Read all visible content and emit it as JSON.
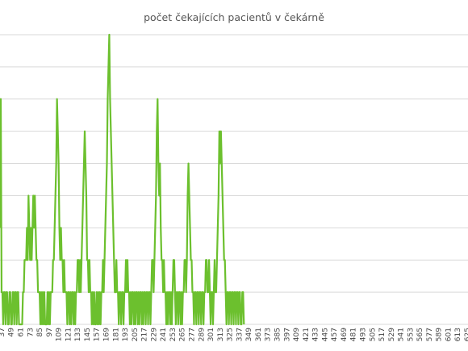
{
  "chart_data": {
    "type": "line",
    "title": "počet čekajících pacientů v čekárně",
    "xlabel": "",
    "ylabel": "",
    "grid": true,
    "legend": "none",
    "x_ticks": [
      "37",
      "49",
      "61",
      "73",
      "85",
      "97",
      "109",
      "121",
      "133",
      "145",
      "157",
      "169",
      "181",
      "193",
      "205",
      "217",
      "229",
      "241",
      "253",
      "265",
      "277",
      "289",
      "301",
      "313",
      "325",
      "337",
      "349",
      "361",
      "373",
      "385",
      "397",
      "409",
      "421",
      "433",
      "445",
      "457",
      "469",
      "481",
      "493",
      "505",
      "517",
      "529",
      "541",
      "553",
      "565",
      "577",
      "589",
      "601",
      "613",
      "625"
    ],
    "xlim": [
      35,
      626
    ],
    "ylim": [
      0,
      9
    ],
    "series": [
      {
        "color": "#6cc02e",
        "points": [
          [
            35,
            3
          ],
          [
            36,
            7
          ],
          [
            37,
            1
          ],
          [
            38,
            1
          ],
          [
            39,
            0
          ],
          [
            40,
            1
          ],
          [
            41,
            1
          ],
          [
            42,
            0
          ],
          [
            43,
            1
          ],
          [
            44,
            1
          ],
          [
            45,
            0
          ],
          [
            46,
            0
          ],
          [
            47,
            1
          ],
          [
            48,
            1
          ],
          [
            49,
            0
          ],
          [
            50,
            0
          ],
          [
            51,
            1
          ],
          [
            52,
            1
          ],
          [
            53,
            0
          ],
          [
            54,
            1
          ],
          [
            55,
            1
          ],
          [
            56,
            0
          ],
          [
            57,
            1
          ],
          [
            58,
            1
          ],
          [
            59,
            0
          ],
          [
            60,
            0
          ],
          [
            61,
            0
          ],
          [
            62,
            0
          ],
          [
            63,
            0
          ],
          [
            64,
            1
          ],
          [
            65,
            1
          ],
          [
            66,
            2
          ],
          [
            67,
            2
          ],
          [
            68,
            2
          ],
          [
            69,
            3
          ],
          [
            70,
            2
          ],
          [
            71,
            4
          ],
          [
            72,
            3
          ],
          [
            73,
            2
          ],
          [
            74,
            3
          ],
          [
            75,
            2
          ],
          [
            76,
            3
          ],
          [
            77,
            4
          ],
          [
            78,
            3
          ],
          [
            79,
            4
          ],
          [
            80,
            3
          ],
          [
            81,
            2
          ],
          [
            82,
            2
          ],
          [
            83,
            1
          ],
          [
            84,
            1
          ],
          [
            85,
            1
          ],
          [
            86,
            0
          ],
          [
            87,
            1
          ],
          [
            88,
            0
          ],
          [
            89,
            1
          ],
          [
            90,
            0
          ],
          [
            91,
            1
          ],
          [
            92,
            0
          ],
          [
            93,
            0
          ],
          [
            94,
            0
          ],
          [
            95,
            1
          ],
          [
            96,
            0
          ],
          [
            97,
            1
          ],
          [
            98,
            0
          ],
          [
            99,
            1
          ],
          [
            100,
            1
          ],
          [
            101,
            1
          ],
          [
            102,
            2
          ],
          [
            103,
            2
          ],
          [
            104,
            3
          ],
          [
            105,
            4
          ],
          [
            106,
            5
          ],
          [
            107,
            7
          ],
          [
            108,
            6
          ],
          [
            109,
            5
          ],
          [
            110,
            3
          ],
          [
            111,
            2
          ],
          [
            112,
            3
          ],
          [
            113,
            2
          ],
          [
            114,
            2
          ],
          [
            115,
            1
          ],
          [
            116,
            2
          ],
          [
            117,
            1
          ],
          [
            118,
            1
          ],
          [
            119,
            1
          ],
          [
            120,
            0
          ],
          [
            121,
            1
          ],
          [
            122,
            1
          ],
          [
            123,
            0
          ],
          [
            124,
            1
          ],
          [
            125,
            0
          ],
          [
            126,
            1
          ],
          [
            127,
            1
          ],
          [
            128,
            0
          ],
          [
            129,
            1
          ],
          [
            130,
            0
          ],
          [
            131,
            1
          ],
          [
            132,
            1
          ],
          [
            133,
            2
          ],
          [
            134,
            2
          ],
          [
            135,
            1
          ],
          [
            136,
            2
          ],
          [
            137,
            1
          ],
          [
            138,
            2
          ],
          [
            139,
            3
          ],
          [
            140,
            4
          ],
          [
            141,
            5
          ],
          [
            142,
            6
          ],
          [
            143,
            5
          ],
          [
            144,
            4
          ],
          [
            145,
            2
          ],
          [
            146,
            2
          ],
          [
            147,
            1
          ],
          [
            148,
            2
          ],
          [
            149,
            1
          ],
          [
            150,
            1
          ],
          [
            151,
            0
          ],
          [
            152,
            1
          ],
          [
            153,
            0
          ],
          [
            154,
            1
          ],
          [
            155,
            0
          ],
          [
            156,
            0
          ],
          [
            157,
            1
          ],
          [
            158,
            0
          ],
          [
            159,
            1
          ],
          [
            160,
            0
          ],
          [
            161,
            1
          ],
          [
            162,
            0
          ],
          [
            163,
            1
          ],
          [
            164,
            1
          ],
          [
            165,
            2
          ],
          [
            166,
            1
          ],
          [
            167,
            2
          ],
          [
            168,
            3
          ],
          [
            169,
            4
          ],
          [
            170,
            5
          ],
          [
            171,
            7
          ],
          [
            172,
            8
          ],
          [
            173,
            9
          ],
          [
            174,
            7
          ],
          [
            175,
            6
          ],
          [
            176,
            5
          ],
          [
            177,
            4
          ],
          [
            178,
            3
          ],
          [
            179,
            2
          ],
          [
            180,
            1
          ],
          [
            181,
            1
          ],
          [
            182,
            2
          ],
          [
            183,
            1
          ],
          [
            184,
            1
          ],
          [
            185,
            0
          ],
          [
            186,
            1
          ],
          [
            187,
            1
          ],
          [
            188,
            0
          ],
          [
            189,
            1
          ],
          [
            190,
            1
          ],
          [
            191,
            0
          ],
          [
            192,
            1
          ],
          [
            193,
            1
          ],
          [
            194,
            2
          ],
          [
            195,
            1
          ],
          [
            196,
            2
          ],
          [
            197,
            1
          ],
          [
            198,
            1
          ],
          [
            199,
            0
          ],
          [
            200,
            1
          ],
          [
            201,
            0
          ],
          [
            202,
            1
          ],
          [
            203,
            1
          ],
          [
            204,
            0
          ],
          [
            205,
            1
          ],
          [
            206,
            0
          ],
          [
            207,
            1
          ],
          [
            208,
            1
          ],
          [
            209,
            0
          ],
          [
            210,
            1
          ],
          [
            211,
            0
          ],
          [
            212,
            1
          ],
          [
            213,
            1
          ],
          [
            214,
            0
          ],
          [
            215,
            1
          ],
          [
            216,
            0
          ],
          [
            217,
            1
          ],
          [
            218,
            1
          ],
          [
            219,
            0
          ],
          [
            220,
            1
          ],
          [
            221,
            1
          ],
          [
            222,
            0
          ],
          [
            223,
            1
          ],
          [
            224,
            1
          ],
          [
            225,
            0
          ],
          [
            226,
            1
          ],
          [
            227,
            2
          ],
          [
            228,
            2
          ],
          [
            229,
            1
          ],
          [
            230,
            2
          ],
          [
            231,
            3
          ],
          [
            232,
            4
          ],
          [
            233,
            6
          ],
          [
            234,
            7
          ],
          [
            235,
            5
          ],
          [
            236,
            4
          ],
          [
            237,
            5
          ],
          [
            238,
            3
          ],
          [
            239,
            2
          ],
          [
            240,
            2
          ],
          [
            241,
            1
          ],
          [
            242,
            2
          ],
          [
            243,
            1
          ],
          [
            244,
            1
          ],
          [
            245,
            0
          ],
          [
            246,
            1
          ],
          [
            247,
            0
          ],
          [
            248,
            1
          ],
          [
            249,
            1
          ],
          [
            250,
            0
          ],
          [
            251,
            1
          ],
          [
            252,
            0
          ],
          [
            253,
            1
          ],
          [
            254,
            2
          ],
          [
            255,
            2
          ],
          [
            256,
            1
          ],
          [
            257,
            0
          ],
          [
            258,
            1
          ],
          [
            259,
            1
          ],
          [
            260,
            0
          ],
          [
            261,
            1
          ],
          [
            262,
            1
          ],
          [
            263,
            0
          ],
          [
            264,
            1
          ],
          [
            265,
            0
          ],
          [
            266,
            1
          ],
          [
            267,
            1
          ],
          [
            268,
            2
          ],
          [
            269,
            2
          ],
          [
            270,
            1
          ],
          [
            271,
            2
          ],
          [
            272,
            4
          ],
          [
            273,
            5
          ],
          [
            274,
            4
          ],
          [
            275,
            3
          ],
          [
            276,
            2
          ],
          [
            277,
            2
          ],
          [
            278,
            1
          ],
          [
            279,
            1
          ],
          [
            280,
            0
          ],
          [
            281,
            1
          ],
          [
            282,
            1
          ],
          [
            283,
            0
          ],
          [
            284,
            1
          ],
          [
            285,
            1
          ],
          [
            286,
            0
          ],
          [
            287,
            1
          ],
          [
            288,
            1
          ],
          [
            289,
            0
          ],
          [
            290,
            1
          ],
          [
            291,
            1
          ],
          [
            292,
            0
          ],
          [
            293,
            1
          ],
          [
            294,
            1
          ],
          [
            295,
            2
          ],
          [
            296,
            2
          ],
          [
            297,
            1
          ],
          [
            298,
            1
          ],
          [
            299,
            2
          ],
          [
            300,
            1
          ],
          [
            301,
            0
          ],
          [
            302,
            1
          ],
          [
            303,
            1
          ],
          [
            304,
            0
          ],
          [
            305,
            1
          ],
          [
            306,
            2
          ],
          [
            307,
            1
          ],
          [
            308,
            1
          ],
          [
            309,
            2
          ],
          [
            310,
            3
          ],
          [
            311,
            4
          ],
          [
            312,
            6
          ],
          [
            313,
            5
          ],
          [
            314,
            6
          ],
          [
            315,
            5
          ],
          [
            316,
            4
          ],
          [
            317,
            3
          ],
          [
            318,
            2
          ],
          [
            319,
            2
          ],
          [
            320,
            1
          ],
          [
            321,
            0
          ],
          [
            322,
            1
          ],
          [
            323,
            1
          ],
          [
            324,
            0
          ],
          [
            325,
            1
          ],
          [
            326,
            1
          ],
          [
            327,
            0
          ],
          [
            328,
            1
          ],
          [
            329,
            1
          ],
          [
            330,
            0
          ],
          [
            331,
            1
          ],
          [
            332,
            1
          ],
          [
            333,
            0
          ],
          [
            334,
            1
          ],
          [
            335,
            1
          ],
          [
            336,
            0
          ],
          [
            337,
            1
          ],
          [
            338,
            1
          ],
          [
            339,
            0
          ],
          [
            340,
            0
          ],
          [
            341,
            1
          ],
          [
            342,
            1
          ],
          [
            343,
            0
          ]
        ]
      }
    ]
  }
}
